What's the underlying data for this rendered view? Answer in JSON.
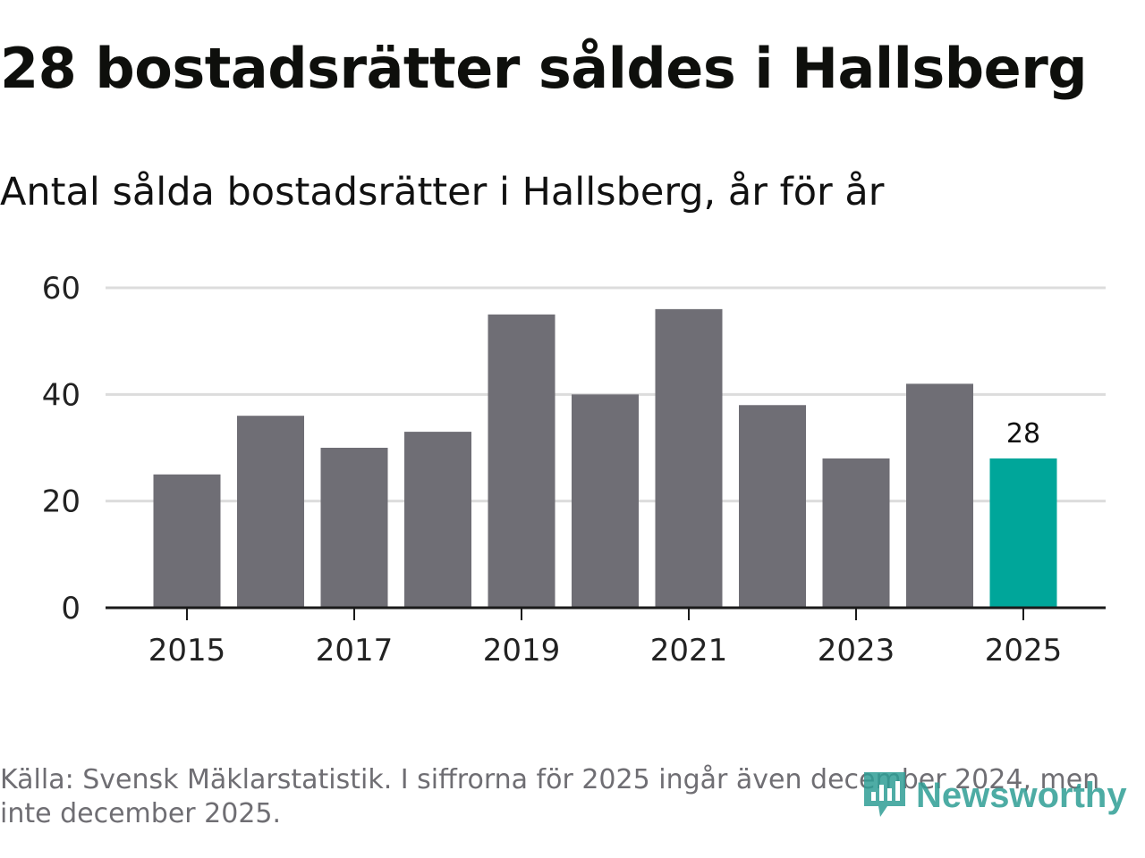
{
  "header": {
    "title": "28 bostadsrätter såldes i Hallsberg",
    "subtitle": "Antal sålda bostadsrätter i Hallsberg, år för år"
  },
  "footer": {
    "source": "Källa: Svensk Mäklarstatistik. I siffrorna för 2025 ingår även december 2024, men inte december 2025."
  },
  "logo": {
    "text": "Newsworthy"
  },
  "colors": {
    "bar": "#6f6e75",
    "highlight": "#00a69a",
    "grid": "#dcdcdc",
    "axis": "#1a1a1a",
    "tick_text": "#222222",
    "brand": "#2f9e95"
  },
  "chart_data": {
    "type": "bar",
    "title": "Antal sålda bostadsrätter i Hallsberg, år för år",
    "xlabel": "",
    "ylabel": "",
    "categories": [
      "2015",
      "2016",
      "2017",
      "2018",
      "2019",
      "2020",
      "2021",
      "2022",
      "2023",
      "2024",
      "2025"
    ],
    "values": [
      25,
      36,
      30,
      33,
      55,
      40,
      56,
      38,
      28,
      42,
      28
    ],
    "highlight_index": 10,
    "data_labels": [
      {
        "index": 10,
        "text": "28"
      }
    ],
    "x_tick_labels": [
      "2015",
      "2017",
      "2019",
      "2021",
      "2023",
      "2025"
    ],
    "y_ticks": [
      0,
      20,
      40,
      60
    ],
    "ylim": [
      0,
      60
    ],
    "grid": true,
    "legend": "none"
  }
}
